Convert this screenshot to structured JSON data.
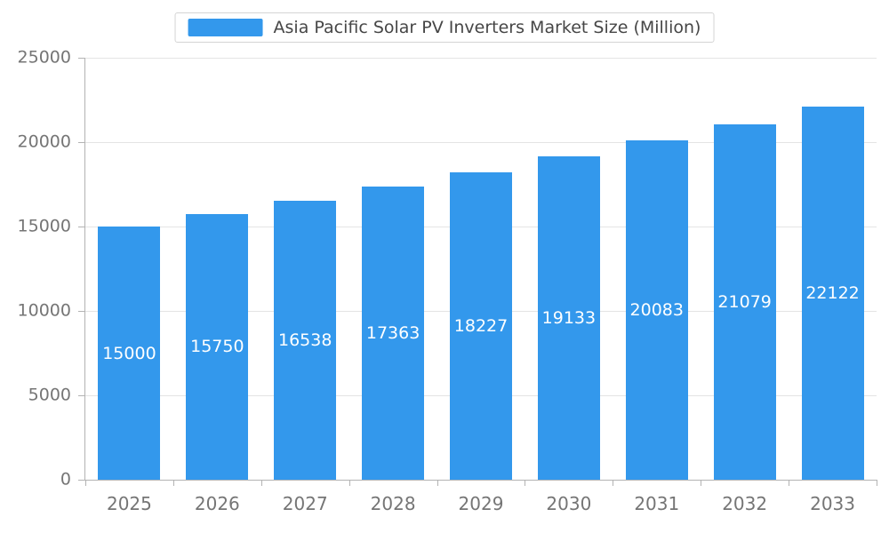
{
  "chart_data": {
    "type": "bar",
    "title": "Asia Pacific Solar PV Inverters Market Size (Million)",
    "categories": [
      "2025",
      "2026",
      "2027",
      "2028",
      "2029",
      "2030",
      "2031",
      "2032",
      "2033"
    ],
    "series": [
      {
        "name": "Asia Pacific Solar PV Inverters Market Size (Million)",
        "values": [
          15000,
          15750,
          16538,
          17363,
          18227,
          19133,
          20083,
          21079,
          22122
        ]
      }
    ],
    "y_ticks": [
      0,
      5000,
      10000,
      15000,
      20000,
      25000
    ],
    "ylim": [
      0,
      25000
    ],
    "xlabel": "",
    "ylabel": "",
    "grid": true,
    "legend_position": "top-center",
    "bar_color": "#3398EC",
    "bar_label_color": "#ffffff",
    "axis_color": "#b3b3b3",
    "gridline_color": "#e4e4e4",
    "tick_label_color": "#757575",
    "legend_text_color": "#464646",
    "background_color": "#ffffff"
  }
}
